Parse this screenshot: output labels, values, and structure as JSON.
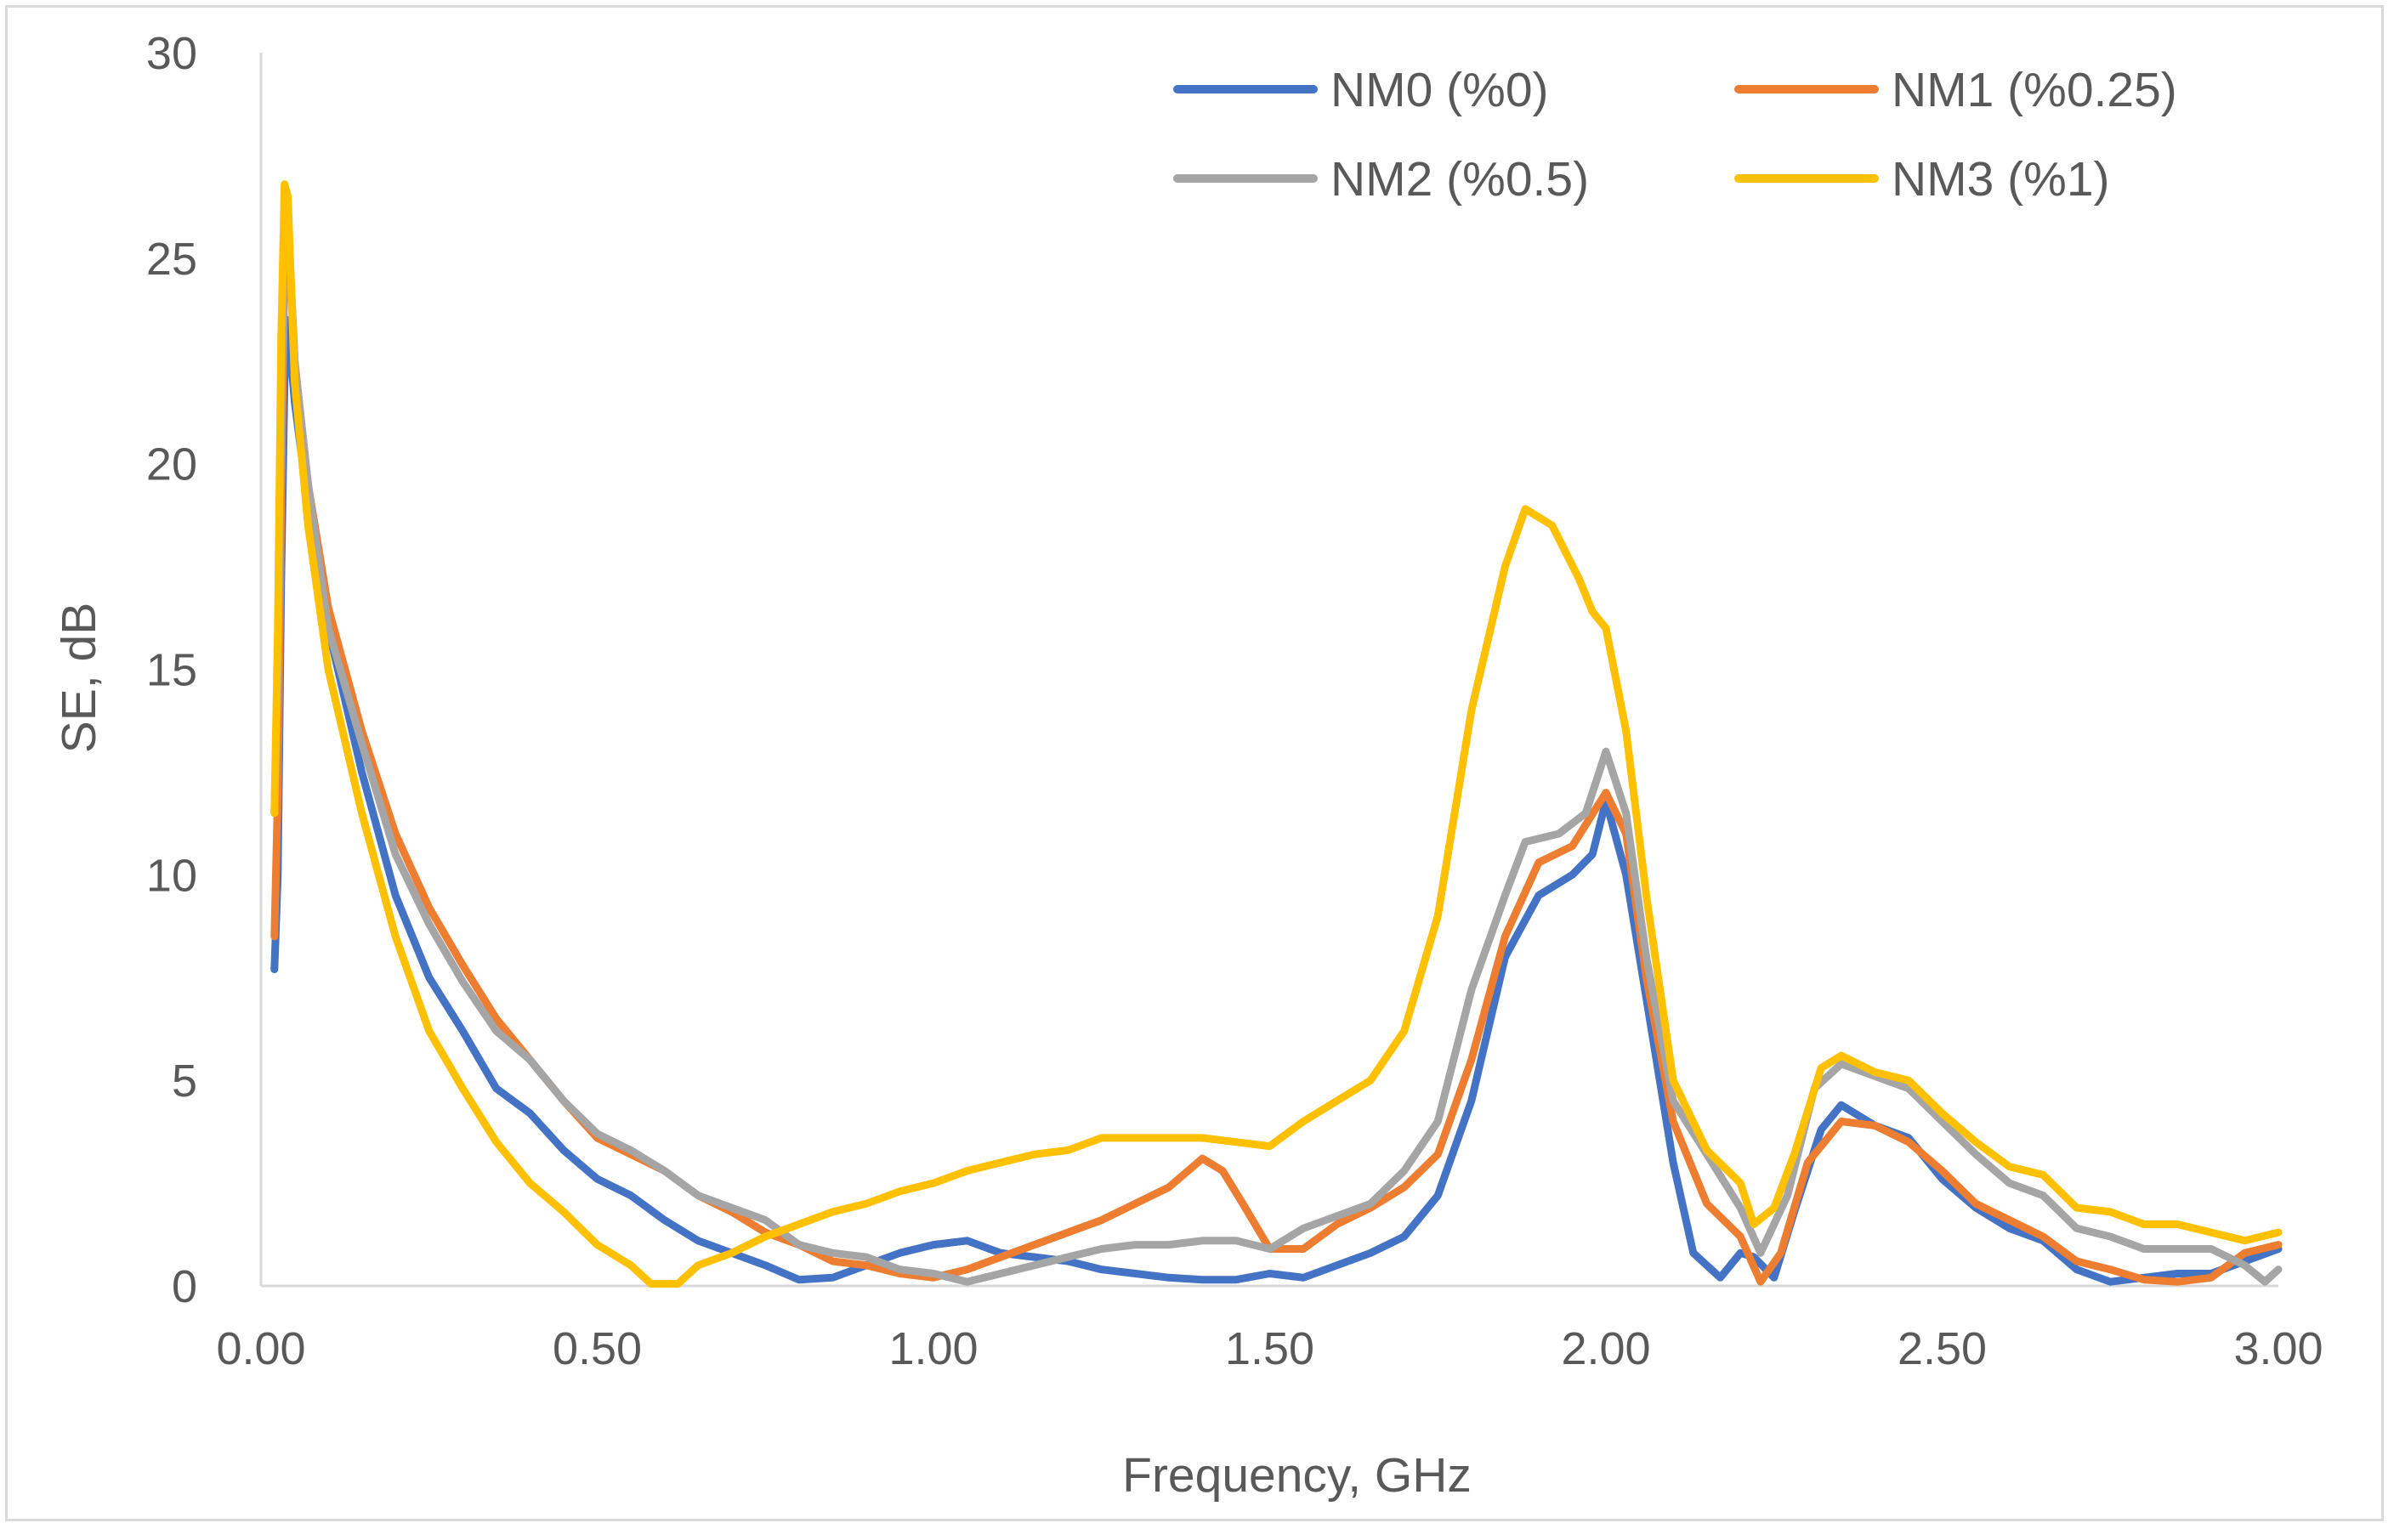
{
  "chart_data": {
    "type": "line",
    "title": "",
    "xlabel": "Frequency, GHz",
    "ylabel": "SE, dB",
    "xlim": [
      0,
      3
    ],
    "ylim": [
      0,
      30
    ],
    "x_ticks": [
      "0.00",
      "0.50",
      "1.00",
      "1.50",
      "2.00",
      "2.50",
      "3.00"
    ],
    "y_ticks": [
      "0",
      "5",
      "10",
      "15",
      "20",
      "25",
      "30"
    ],
    "grid": false,
    "legend_position": "top-right",
    "series": [
      {
        "name": "NM0 (%0)",
        "color": "#4472c4",
        "points": [
          [
            0.02,
            7.7
          ],
          [
            0.025,
            10
          ],
          [
            0.03,
            17
          ],
          [
            0.035,
            22
          ],
          [
            0.04,
            23.5
          ],
          [
            0.05,
            21.5
          ],
          [
            0.07,
            19
          ],
          [
            0.1,
            16
          ],
          [
            0.15,
            12.5
          ],
          [
            0.2,
            9.5
          ],
          [
            0.25,
            7.5
          ],
          [
            0.3,
            6.2
          ],
          [
            0.35,
            4.8
          ],
          [
            0.4,
            4.2
          ],
          [
            0.45,
            3.3
          ],
          [
            0.5,
            2.6
          ],
          [
            0.55,
            2.2
          ],
          [
            0.6,
            1.6
          ],
          [
            0.65,
            1.1
          ],
          [
            0.7,
            0.8
          ],
          [
            0.75,
            0.5
          ],
          [
            0.8,
            0.15
          ],
          [
            0.85,
            0.2
          ],
          [
            0.9,
            0.5
          ],
          [
            0.95,
            0.8
          ],
          [
            1.0,
            1.0
          ],
          [
            1.05,
            1.1
          ],
          [
            1.1,
            0.8
          ],
          [
            1.15,
            0.7
          ],
          [
            1.2,
            0.6
          ],
          [
            1.25,
            0.4
          ],
          [
            1.3,
            0.3
          ],
          [
            1.35,
            0.2
          ],
          [
            1.4,
            0.15
          ],
          [
            1.45,
            0.15
          ],
          [
            1.5,
            0.3
          ],
          [
            1.55,
            0.2
          ],
          [
            1.6,
            0.5
          ],
          [
            1.65,
            0.8
          ],
          [
            1.7,
            1.2
          ],
          [
            1.75,
            2.2
          ],
          [
            1.8,
            4.5
          ],
          [
            1.85,
            8
          ],
          [
            1.9,
            9.5
          ],
          [
            1.95,
            10
          ],
          [
            1.98,
            10.5
          ],
          [
            2.0,
            11.8
          ],
          [
            2.03,
            10
          ],
          [
            2.06,
            7
          ],
          [
            2.1,
            3
          ],
          [
            2.13,
            0.8
          ],
          [
            2.17,
            0.2
          ],
          [
            2.2,
            0.8
          ],
          [
            2.22,
            0.7
          ],
          [
            2.25,
            0.2
          ],
          [
            2.28,
            1.8
          ],
          [
            2.32,
            3.8
          ],
          [
            2.35,
            4.4
          ],
          [
            2.4,
            3.9
          ],
          [
            2.45,
            3.6
          ],
          [
            2.5,
            2.6
          ],
          [
            2.55,
            1.9
          ],
          [
            2.6,
            1.4
          ],
          [
            2.65,
            1.1
          ],
          [
            2.7,
            0.4
          ],
          [
            2.75,
            0.1
          ],
          [
            2.8,
            0.2
          ],
          [
            2.85,
            0.3
          ],
          [
            2.9,
            0.3
          ],
          [
            2.95,
            0.6
          ],
          [
            3.0,
            0.9
          ]
        ]
      },
      {
        "name": "NM1 (%0.25)",
        "color": "#ed7d31",
        "points": [
          [
            0.02,
            8.5
          ],
          [
            0.025,
            12
          ],
          [
            0.03,
            19
          ],
          [
            0.035,
            25
          ],
          [
            0.04,
            26
          ],
          [
            0.05,
            22.5
          ],
          [
            0.07,
            19.5
          ],
          [
            0.1,
            16.5
          ],
          [
            0.15,
            13.5
          ],
          [
            0.2,
            11
          ],
          [
            0.25,
            9.2
          ],
          [
            0.3,
            7.8
          ],
          [
            0.35,
            6.5
          ],
          [
            0.4,
            5.5
          ],
          [
            0.45,
            4.5
          ],
          [
            0.5,
            3.6
          ],
          [
            0.55,
            3.2
          ],
          [
            0.6,
            2.8
          ],
          [
            0.65,
            2.2
          ],
          [
            0.7,
            1.8
          ],
          [
            0.75,
            1.3
          ],
          [
            0.8,
            1.0
          ],
          [
            0.85,
            0.6
          ],
          [
            0.9,
            0.5
          ],
          [
            0.95,
            0.3
          ],
          [
            1.0,
            0.2
          ],
          [
            1.05,
            0.4
          ],
          [
            1.1,
            0.7
          ],
          [
            1.15,
            1.0
          ],
          [
            1.2,
            1.3
          ],
          [
            1.25,
            1.6
          ],
          [
            1.3,
            2.0
          ],
          [
            1.35,
            2.4
          ],
          [
            1.4,
            3.1
          ],
          [
            1.43,
            2.8
          ],
          [
            1.46,
            2.0
          ],
          [
            1.5,
            0.9
          ],
          [
            1.55,
            0.9
          ],
          [
            1.6,
            1.5
          ],
          [
            1.65,
            1.9
          ],
          [
            1.7,
            2.4
          ],
          [
            1.75,
            3.2
          ],
          [
            1.8,
            5.5
          ],
          [
            1.85,
            8.5
          ],
          [
            1.9,
            10.3
          ],
          [
            1.95,
            10.7
          ],
          [
            2.0,
            12
          ],
          [
            2.03,
            11
          ],
          [
            2.06,
            7.5
          ],
          [
            2.1,
            4
          ],
          [
            2.15,
            2.0
          ],
          [
            2.2,
            1.2
          ],
          [
            2.23,
            0.1
          ],
          [
            2.26,
            0.8
          ],
          [
            2.3,
            3.0
          ],
          [
            2.35,
            4.0
          ],
          [
            2.4,
            3.9
          ],
          [
            2.45,
            3.5
          ],
          [
            2.5,
            2.8
          ],
          [
            2.55,
            2.0
          ],
          [
            2.6,
            1.6
          ],
          [
            2.65,
            1.2
          ],
          [
            2.7,
            0.6
          ],
          [
            2.75,
            0.4
          ],
          [
            2.8,
            0.15
          ],
          [
            2.85,
            0.1
          ],
          [
            2.9,
            0.2
          ],
          [
            2.95,
            0.8
          ],
          [
            3.0,
            1.0
          ]
        ]
      },
      {
        "name": "NM2 (%0.5)",
        "color": "#a5a5a5",
        "points": [
          [
            0.02,
            11.5
          ],
          [
            0.025,
            15
          ],
          [
            0.03,
            21
          ],
          [
            0.035,
            25.5
          ],
          [
            0.04,
            26
          ],
          [
            0.05,
            22.5
          ],
          [
            0.07,
            19.5
          ],
          [
            0.1,
            16
          ],
          [
            0.15,
            13.2
          ],
          [
            0.2,
            10.5
          ],
          [
            0.25,
            8.8
          ],
          [
            0.3,
            7.4
          ],
          [
            0.35,
            6.2
          ],
          [
            0.4,
            5.5
          ],
          [
            0.45,
            4.5
          ],
          [
            0.5,
            3.7
          ],
          [
            0.55,
            3.3
          ],
          [
            0.6,
            2.8
          ],
          [
            0.65,
            2.2
          ],
          [
            0.7,
            1.9
          ],
          [
            0.75,
            1.6
          ],
          [
            0.8,
            1.0
          ],
          [
            0.85,
            0.8
          ],
          [
            0.9,
            0.7
          ],
          [
            0.95,
            0.4
          ],
          [
            1.0,
            0.3
          ],
          [
            1.05,
            0.1
          ],
          [
            1.1,
            0.3
          ],
          [
            1.15,
            0.5
          ],
          [
            1.2,
            0.7
          ],
          [
            1.25,
            0.9
          ],
          [
            1.3,
            1.0
          ],
          [
            1.35,
            1.0
          ],
          [
            1.4,
            1.1
          ],
          [
            1.45,
            1.1
          ],
          [
            1.5,
            0.9
          ],
          [
            1.55,
            1.4
          ],
          [
            1.6,
            1.7
          ],
          [
            1.65,
            2.0
          ],
          [
            1.7,
            2.8
          ],
          [
            1.75,
            4.0
          ],
          [
            1.8,
            7.2
          ],
          [
            1.85,
            9.5
          ],
          [
            1.88,
            10.8
          ],
          [
            1.93,
            11.0
          ],
          [
            1.97,
            11.5
          ],
          [
            2.0,
            13.0
          ],
          [
            2.03,
            11.5
          ],
          [
            2.06,
            8.0
          ],
          [
            2.1,
            4.5
          ],
          [
            2.15,
            3.2
          ],
          [
            2.2,
            1.9
          ],
          [
            2.23,
            0.8
          ],
          [
            2.27,
            2.2
          ],
          [
            2.31,
            4.8
          ],
          [
            2.35,
            5.4
          ],
          [
            2.4,
            5.1
          ],
          [
            2.45,
            4.8
          ],
          [
            2.5,
            4.0
          ],
          [
            2.55,
            3.2
          ],
          [
            2.6,
            2.5
          ],
          [
            2.65,
            2.2
          ],
          [
            2.7,
            1.4
          ],
          [
            2.75,
            1.2
          ],
          [
            2.8,
            0.9
          ],
          [
            2.85,
            0.9
          ],
          [
            2.9,
            0.9
          ],
          [
            2.95,
            0.5
          ],
          [
            2.98,
            0.1
          ],
          [
            3.0,
            0.4
          ]
        ]
      },
      {
        "name": "NM3 (%1)",
        "color": "#ffc000",
        "points": [
          [
            0.02,
            11.5
          ],
          [
            0.025,
            16
          ],
          [
            0.03,
            23
          ],
          [
            0.035,
            26.8
          ],
          [
            0.04,
            26.5
          ],
          [
            0.05,
            22
          ],
          [
            0.07,
            18.5
          ],
          [
            0.1,
            15
          ],
          [
            0.15,
            11.5
          ],
          [
            0.2,
            8.5
          ],
          [
            0.25,
            6.2
          ],
          [
            0.3,
            4.8
          ],
          [
            0.35,
            3.5
          ],
          [
            0.4,
            2.5
          ],
          [
            0.45,
            1.8
          ],
          [
            0.5,
            1.0
          ],
          [
            0.55,
            0.5
          ],
          [
            0.58,
            0.05
          ],
          [
            0.62,
            0.05
          ],
          [
            0.65,
            0.5
          ],
          [
            0.7,
            0.8
          ],
          [
            0.75,
            1.2
          ],
          [
            0.8,
            1.5
          ],
          [
            0.85,
            1.8
          ],
          [
            0.9,
            2.0
          ],
          [
            0.95,
            2.3
          ],
          [
            1.0,
            2.5
          ],
          [
            1.05,
            2.8
          ],
          [
            1.1,
            3.0
          ],
          [
            1.15,
            3.2
          ],
          [
            1.2,
            3.3
          ],
          [
            1.25,
            3.6
          ],
          [
            1.3,
            3.6
          ],
          [
            1.35,
            3.6
          ],
          [
            1.4,
            3.6
          ],
          [
            1.45,
            3.5
          ],
          [
            1.5,
            3.4
          ],
          [
            1.55,
            4.0
          ],
          [
            1.6,
            4.5
          ],
          [
            1.65,
            5.0
          ],
          [
            1.7,
            6.2
          ],
          [
            1.75,
            9.0
          ],
          [
            1.8,
            14
          ],
          [
            1.85,
            17.5
          ],
          [
            1.88,
            18.9
          ],
          [
            1.92,
            18.5
          ],
          [
            1.96,
            17.2
          ],
          [
            1.98,
            16.4
          ],
          [
            2.0,
            16.0
          ],
          [
            2.03,
            13.5
          ],
          [
            2.06,
            9.5
          ],
          [
            2.1,
            5.0
          ],
          [
            2.15,
            3.3
          ],
          [
            2.2,
            2.5
          ],
          [
            2.22,
            1.5
          ],
          [
            2.25,
            1.9
          ],
          [
            2.28,
            3.2
          ],
          [
            2.32,
            5.3
          ],
          [
            2.35,
            5.6
          ],
          [
            2.4,
            5.2
          ],
          [
            2.45,
            5.0
          ],
          [
            2.5,
            4.2
          ],
          [
            2.55,
            3.5
          ],
          [
            2.6,
            2.9
          ],
          [
            2.65,
            2.7
          ],
          [
            2.7,
            1.9
          ],
          [
            2.75,
            1.8
          ],
          [
            2.8,
            1.5
          ],
          [
            2.85,
            1.5
          ],
          [
            2.9,
            1.3
          ],
          [
            2.95,
            1.1
          ],
          [
            3.0,
            1.3
          ]
        ]
      }
    ]
  }
}
